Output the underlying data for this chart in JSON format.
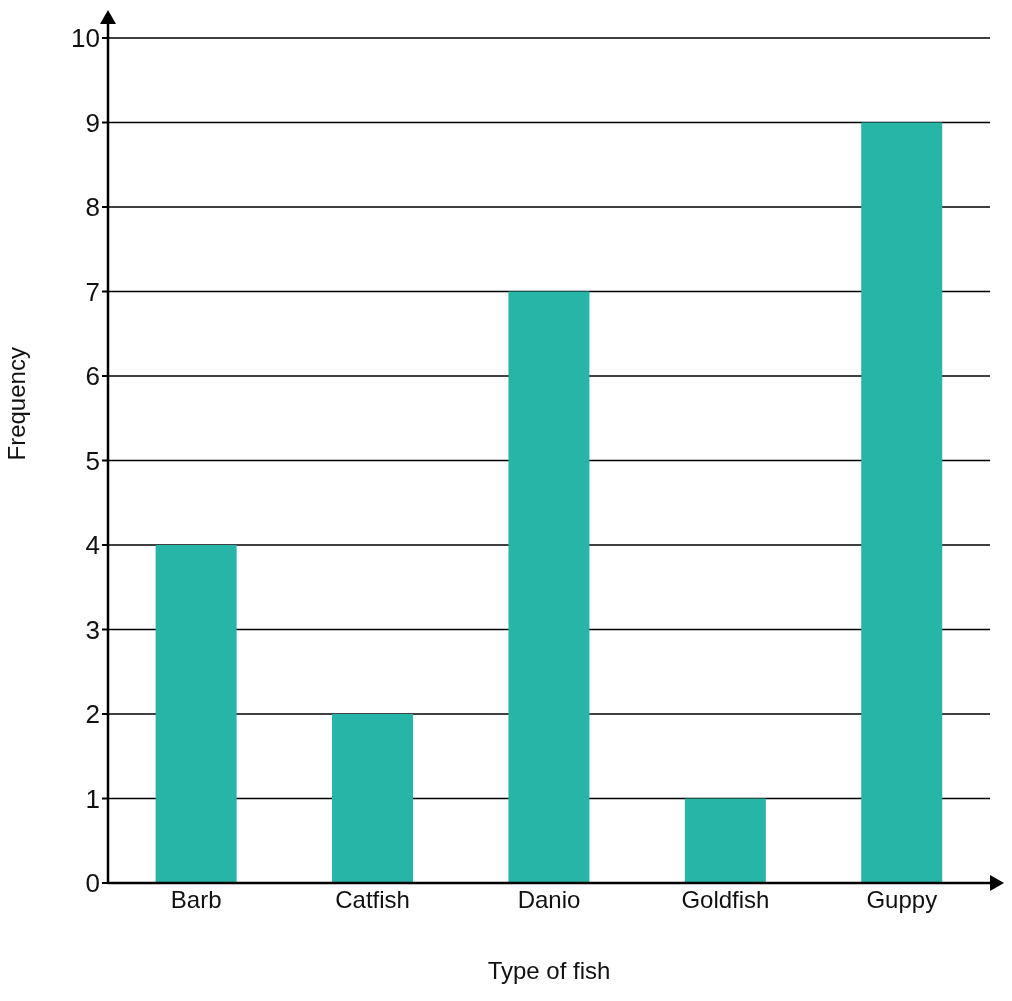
{
  "chart_data": {
    "type": "bar",
    "xlabel": "Type of fish",
    "ylabel": "Frequency",
    "categories": [
      "Barb",
      "Catfish",
      "Danio",
      "Goldfish",
      "Guppy"
    ],
    "values": [
      4,
      2,
      7,
      1,
      9
    ],
    "color": "#26b5a7",
    "ylim": [
      0,
      10
    ],
    "yticks": [
      0,
      1,
      2,
      3,
      4,
      5,
      6,
      7,
      8,
      9,
      10
    ],
    "grid": "y"
  }
}
